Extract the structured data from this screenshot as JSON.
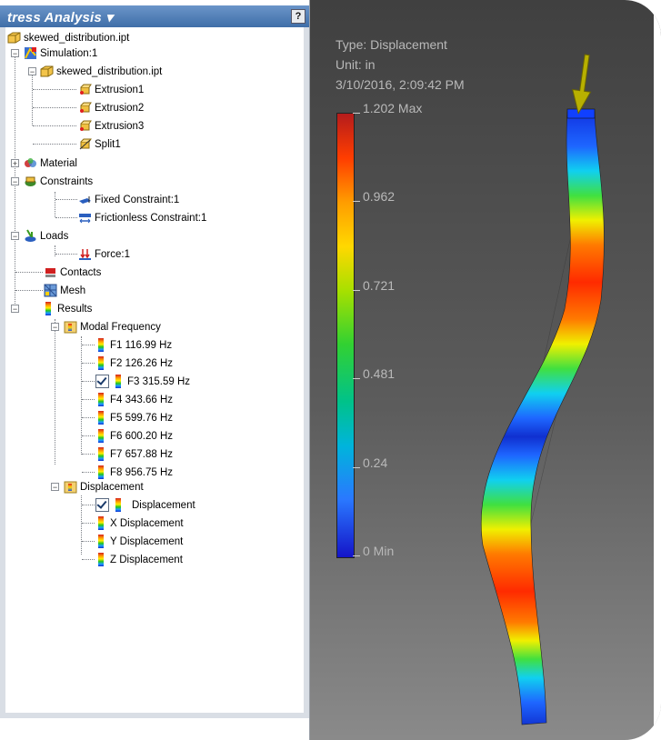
{
  "panel": {
    "title": "tress Analysis ▾",
    "help_label": "?"
  },
  "tree": {
    "root": "skewed_distribution.ipt",
    "simulation": "Simulation:1",
    "part": "skewed_distribution.ipt",
    "features": [
      "Extrusion1",
      "Extrusion2",
      "Extrusion3",
      "Split1"
    ],
    "material": "Material",
    "constraints": "Constraints",
    "fixed_constraint": "Fixed Constraint:1",
    "frictionless_constraint": "Frictionless Constraint:1",
    "loads": "Loads",
    "force": "Force:1",
    "contacts": "Contacts",
    "mesh": "Mesh",
    "results": "Results",
    "modal_frequency": "Modal Frequency",
    "modes": [
      {
        "label": "F1  116.99 Hz",
        "checked": false
      },
      {
        "label": "F2  126.26 Hz",
        "checked": false
      },
      {
        "label": "F3  315.59 Hz",
        "checked": true
      },
      {
        "label": "F4  343.66 Hz",
        "checked": false
      },
      {
        "label": "F5  599.76 Hz",
        "checked": false
      },
      {
        "label": "F6  600.20 Hz",
        "checked": false
      },
      {
        "label": "F7  657.88 Hz",
        "checked": false
      },
      {
        "label": "F8  956.75 Hz",
        "checked": false
      }
    ],
    "displacement_folder": "Displacement",
    "displacements": [
      {
        "label": "Displacement",
        "checked": true
      },
      {
        "label": "X Displacement",
        "checked": false
      },
      {
        "label": "Y Displacement",
        "checked": false
      },
      {
        "label": "Z Displacement",
        "checked": false
      }
    ]
  },
  "viewport": {
    "type_line": "Type: Displacement",
    "unit_line": "Unit: in",
    "date_line": "3/10/2016, 2:09:42 PM",
    "legend": [
      "1.202 Max",
      "0.962",
      "0.721",
      "0.481",
      "0.24",
      "0 Min"
    ]
  },
  "colors": {
    "header": "#4a78b0",
    "viewport_bg": "#505050",
    "legend_text": "#b9b9b9"
  }
}
